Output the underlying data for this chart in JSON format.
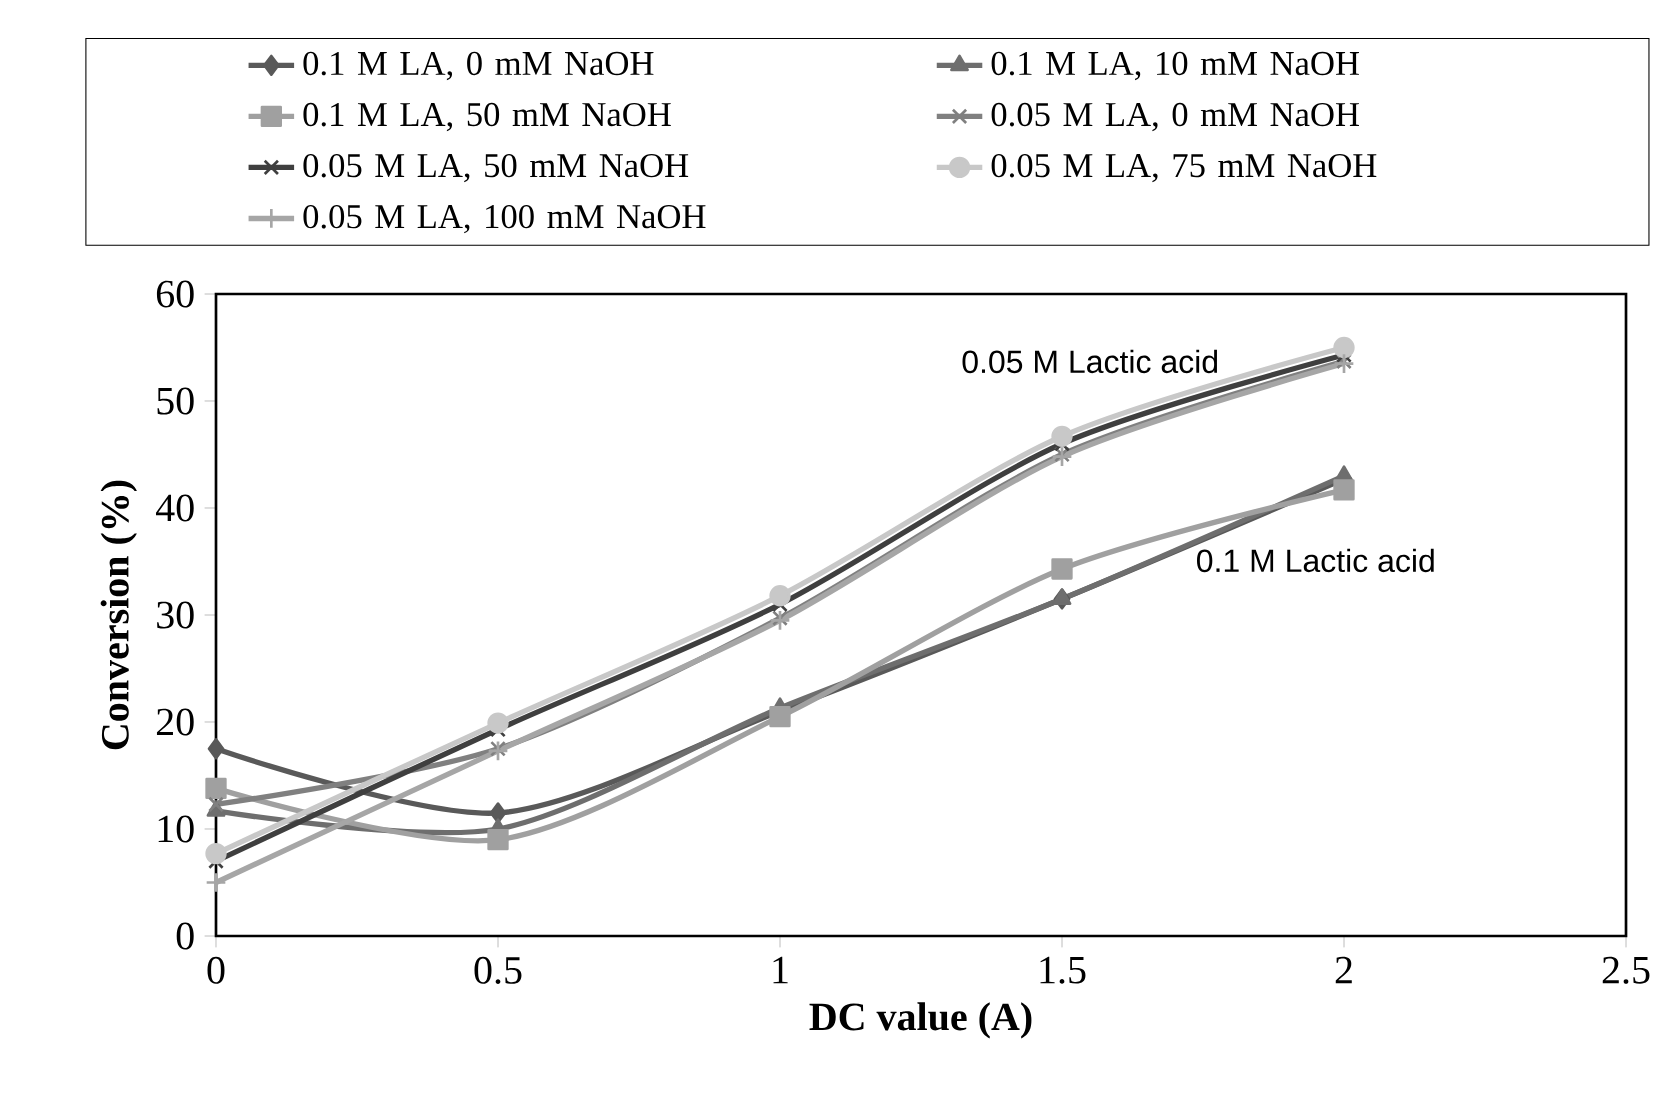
{
  "chart_data": {
    "type": "line",
    "xlabel": "DC value (A)",
    "ylabel": "Conversion (%)",
    "x": [
      0,
      0.5,
      1,
      1.5,
      2
    ],
    "xlim": [
      0,
      2.5
    ],
    "xticks": [
      0,
      0.5,
      1,
      1.5,
      2,
      2.5
    ],
    "ylim": [
      0,
      60
    ],
    "yticks": [
      0,
      10,
      20,
      30,
      40,
      50,
      60
    ],
    "grid": false,
    "legend": "top",
    "line_style": "solid",
    "series": [
      {
        "name": "0.1 M LA, 0 mM NaOH",
        "color": "#595959",
        "marker": "diamond",
        "values": [
          17.5,
          11.5,
          21,
          31.5,
          42.7
        ]
      },
      {
        "name": "0.1 M LA, 10 mM NaOH",
        "color": "#6e6e6e",
        "marker": "triangle",
        "values": [
          11.7,
          10,
          21.3,
          31.5,
          43
        ]
      },
      {
        "name": "0.1 M LA, 50 mM NaOH",
        "color": "#a0a0a0",
        "marker": "square",
        "values": [
          13.8,
          9,
          20.5,
          34.3,
          41.7
        ]
      },
      {
        "name": "0.05 M LA, 0 mM NaOH",
        "color": "#808080",
        "marker": "cross",
        "values": [
          12.3,
          17.5,
          29.7,
          45,
          53.7
        ]
      },
      {
        "name": "0.05 M LA, 50 mM NaOH",
        "color": "#3f3f3f",
        "marker": "cross",
        "values": [
          7,
          19.3,
          31,
          46,
          54.3
        ]
      },
      {
        "name": "0.05 M LA, 75 mM NaOH",
        "color": "#c8c8c8",
        "marker": "circle",
        "values": [
          7.7,
          19.9,
          31.8,
          46.7,
          55
        ]
      },
      {
        "name": "0.05 M LA, 100 mM NaOH",
        "color": "#a6a6a6",
        "marker": "plus",
        "values": [
          5,
          17.3,
          29.5,
          44.8,
          53.5
        ]
      }
    ],
    "annotations": [
      "0.05 M Lactic acid",
      "0.1 M Lactic acid"
    ]
  }
}
